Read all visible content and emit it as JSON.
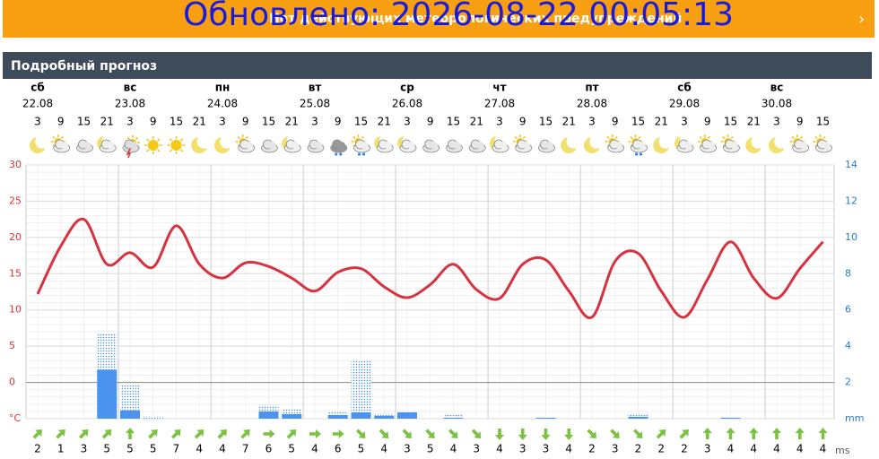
{
  "banner": {
    "warning": "Нет действующих метеорологических предупреждений",
    "updated": "Обновлено: 2026-08-22 00:05:13"
  },
  "header": {
    "title": "Подробный прогноз"
  },
  "days": [
    {
      "name": "сб",
      "date": "22.08"
    },
    {
      "name": "вс",
      "date": "23.08"
    },
    {
      "name": "пн",
      "date": "24.08"
    },
    {
      "name": "вт",
      "date": "25.08"
    },
    {
      "name": "ср",
      "date": "26.08"
    },
    {
      "name": "чт",
      "date": "27.08"
    },
    {
      "name": "пт",
      "date": "28.08"
    },
    {
      "name": "сб",
      "date": "29.08"
    },
    {
      "name": "вс",
      "date": "30.08"
    }
  ],
  "hours": [
    3,
    9,
    15,
    21,
    3,
    9,
    15,
    21,
    3,
    9,
    15,
    21,
    3,
    9,
    15,
    21,
    3,
    9,
    15,
    21,
    3,
    9,
    15,
    21,
    3,
    9,
    15,
    21,
    3,
    9,
    15,
    21,
    3,
    9,
    15
  ],
  "icons": [
    "m",
    "sc",
    "c",
    "mc",
    "t",
    "s",
    "s",
    "m",
    "m",
    "sc",
    "c",
    "mc",
    "c",
    "r",
    "sr",
    "mc",
    "mc",
    "c",
    "c",
    "c",
    "mc",
    "sc",
    "c",
    "m",
    "m",
    "sc",
    "sr",
    "m",
    "mc",
    "sc",
    "sc",
    "m",
    "m",
    "sc",
    "sc"
  ],
  "chart_data": {
    "type": "line",
    "grid": true,
    "ylim": [
      -5,
      30
    ],
    "yticks": [
      {
        "value": -5,
        "label": "°C"
      },
      0,
      5,
      10,
      15,
      20,
      25,
      30
    ],
    "y2lim": [
      0,
      14
    ],
    "y2ticks": [
      {
        "value": 0,
        "label": "mm"
      },
      2,
      4,
      6,
      8,
      10,
      12,
      14
    ],
    "series": [
      {
        "type": "line",
        "color": "#d6323f",
        "values": [
          12.2,
          18.8,
          22.5,
          16.3,
          17.9,
          15.9,
          21.6,
          16.3,
          14.4,
          16.5,
          16,
          14.4,
          12.6,
          15.2,
          15.7,
          13.2,
          11.7,
          13.5,
          16.3,
          12.8,
          11.6,
          16.3,
          16.9,
          12.6,
          9,
          16.7,
          17.8,
          12.6,
          9,
          14.2,
          19.4,
          14.4,
          11.6,
          15.7,
          19.4
        ]
      },
      {
        "type": "bar",
        "axis": "y2",
        "color": "#b7d3f7",
        "pattern": "dotted",
        "values": [
          0,
          0,
          0,
          4.7,
          1.9,
          0.15,
          0,
          0,
          0,
          0,
          0.75,
          0.55,
          0,
          0.35,
          3.2,
          0.3,
          0.45,
          0,
          0.2,
          0,
          0,
          0,
          0.1,
          0,
          0,
          0,
          0.3,
          0,
          0,
          0,
          0.1,
          0,
          0,
          0,
          0
        ]
      },
      {
        "type": "bar",
        "axis": "y2",
        "color": "#4c93f0",
        "values": [
          0,
          0,
          0,
          2.7,
          0.45,
          0,
          0,
          0,
          0,
          0,
          0.4,
          0.25,
          0,
          0.2,
          0.35,
          0.15,
          0.35,
          0,
          0.05,
          0,
          0,
          0,
          0.05,
          0,
          0,
          0,
          0.1,
          0,
          0,
          0,
          0.05,
          0,
          0,
          0,
          0
        ]
      }
    ]
  },
  "wind": {
    "unit": "ms",
    "color": "#7cc242",
    "speeds": [
      2,
      1,
      3,
      5,
      5,
      5,
      7,
      4,
      4,
      7,
      6,
      5,
      4,
      6,
      5,
      4,
      3,
      5,
      4,
      3,
      4,
      3,
      3,
      4,
      2,
      3,
      2,
      2,
      2,
      3,
      4,
      4,
      4,
      4,
      4
    ],
    "directions": [
      45,
      45,
      45,
      45,
      0,
      45,
      45,
      45,
      45,
      45,
      90,
      45,
      90,
      90,
      135,
      135,
      135,
      135,
      135,
      135,
      180,
      180,
      180,
      180,
      135,
      135,
      135,
      45,
      45,
      0,
      0,
      0,
      0,
      0,
      0
    ]
  }
}
